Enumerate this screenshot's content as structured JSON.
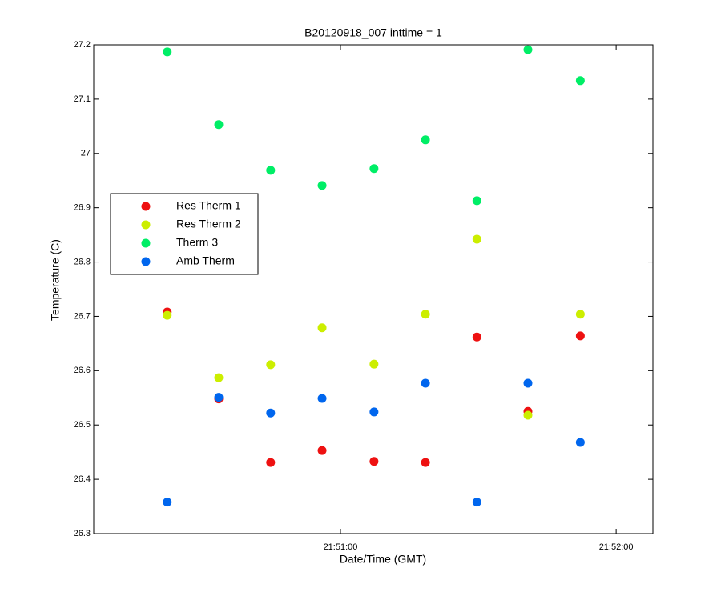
{
  "chart_data": {
    "type": "scatter",
    "title": "B20120918_007 inttime = 1",
    "x_label": "Date/Time (GMT)",
    "y_label": "Temperature (C)",
    "x": [
      78622.3,
      78633.5,
      78644.8,
      78656.0,
      78667.3,
      78678.5,
      78689.7,
      78700.8,
      78712.2
    ],
    "series": [
      {
        "name": "Res Therm 1",
        "color": "#ee1111",
        "values": [
          26.708,
          26.548,
          26.431,
          26.453,
          26.433,
          26.431,
          26.662,
          26.525,
          26.664
        ]
      },
      {
        "name": "Res Therm 2",
        "color": "#ccee00",
        "values": [
          26.702,
          26.587,
          26.611,
          26.679,
          26.612,
          26.704,
          26.842,
          26.518,
          26.704
        ]
      },
      {
        "name": "Therm 3",
        "color": "#00ee66",
        "values": [
          27.187,
          27.053,
          26.969,
          26.941,
          26.972,
          27.025,
          26.913,
          27.191,
          27.134
        ]
      },
      {
        "name": "Amb Therm",
        "color": "#0066ee",
        "values": [
          26.358,
          26.551,
          26.522,
          26.549,
          26.524,
          26.577,
          26.358,
          26.577,
          26.468
        ]
      }
    ],
    "xlim": [
      78606.3,
      78728
    ],
    "xticks": [
      {
        "value": 78660,
        "label": "21:51:00"
      },
      {
        "value": 78720,
        "label": "21:52:00"
      }
    ],
    "ylim": [
      26.3,
      27.2
    ],
    "yticks": [
      26.3,
      26.4,
      26.5,
      26.6,
      26.7,
      26.8,
      26.9,
      27,
      27.1,
      27.2
    ],
    "grid": false,
    "legend": "left"
  }
}
